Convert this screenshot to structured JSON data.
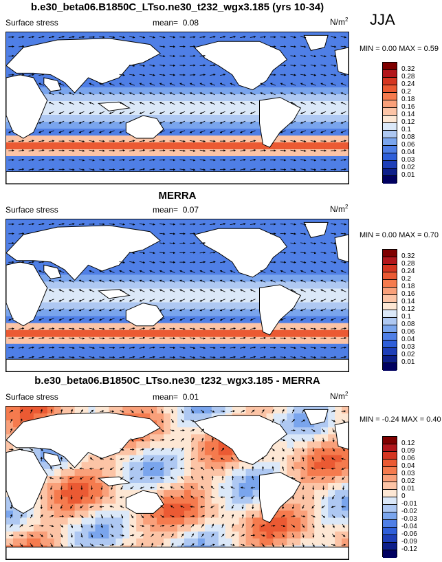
{
  "season": "JJA",
  "panels": [
    {
      "title": "b.e30_beta06.B1850C_LTso.ne30_t232_wgx3.185 (yrs 10-34)",
      "variable": "Surface stress",
      "mean_label": "mean=",
      "mean_value": "0.08",
      "units": "N/m",
      "units_exp": "2",
      "min_label": "MIN =",
      "min_value": "0.00",
      "max_label": "MAX =",
      "max_value": "0.59",
      "field": "magnitude",
      "colorbar_labels": [
        "0.32",
        "0.28",
        "0.24",
        "0.2",
        "0.18",
        "0.16",
        "0.14",
        "0.12",
        "0.1",
        "0.08",
        "0.06",
        "0.04",
        "0.03",
        "0.02",
        "0.01"
      ]
    },
    {
      "title": "MERRA",
      "variable": "Surface stress",
      "mean_label": "mean=",
      "mean_value": "0.07",
      "units": "N/m",
      "units_exp": "2",
      "min_label": "MIN =",
      "min_value": "0.00",
      "max_label": "MAX =",
      "max_value": "0.70",
      "field": "magnitude",
      "colorbar_labels": [
        "0.32",
        "0.28",
        "0.24",
        "0.2",
        "0.18",
        "0.16",
        "0.14",
        "0.12",
        "0.1",
        "0.08",
        "0.06",
        "0.04",
        "0.03",
        "0.02",
        "0.01"
      ]
    },
    {
      "title": "b.e30_beta06.B1850C_LTso.ne30_t232_wgx3.185 - MERRA",
      "variable": "Surface stress",
      "mean_label": "mean=",
      "mean_value": "0.01",
      "units": "N/m",
      "units_exp": "2",
      "min_label": "MIN =",
      "min_value": "-0.24",
      "max_label": "MAX =",
      "max_value": "0.40",
      "field": "difference",
      "colorbar_labels": [
        "0.12",
        "0.09",
        "0.06",
        "0.04",
        "0.03",
        "0.02",
        "0.01",
        "0",
        "-0.01",
        "-0.02",
        "-0.03",
        "-0.04",
        "-0.06",
        "-0.09",
        "-0.12"
      ]
    }
  ],
  "colors": {
    "scale": [
      "#7f0000",
      "#b2161b",
      "#d53621",
      "#eb5a33",
      "#f57b4e",
      "#f9a07a",
      "#fcc4a6",
      "#fde7d4",
      "#dbe8f8",
      "#aec8f2",
      "#7aa5ed",
      "#4f7fe6",
      "#2f5fd9",
      "#1e3fb8",
      "#0d1f8a",
      "#000060"
    ],
    "land": "#ffffff",
    "coast": "#000000",
    "arrow": "#000000"
  }
}
